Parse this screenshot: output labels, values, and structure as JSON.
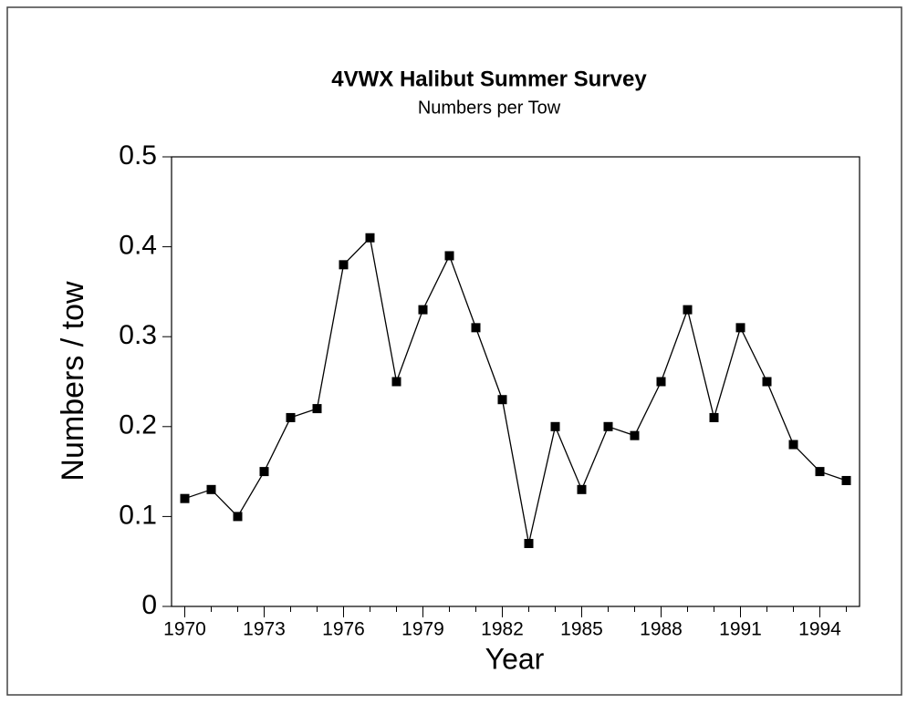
{
  "chart_data": {
    "type": "line",
    "title": "4VWX Halibut Summer Survey",
    "subtitle": "Numbers per Tow",
    "x_label": "Year",
    "y_label": "Numbers / tow",
    "x": [
      1970,
      1971,
      1972,
      1973,
      1974,
      1975,
      1976,
      1977,
      1978,
      1979,
      1980,
      1981,
      1982,
      1983,
      1984,
      1985,
      1986,
      1987,
      1988,
      1989,
      1990,
      1991,
      1992,
      1993,
      1994,
      1995
    ],
    "series": [
      {
        "name": "Numbers per tow",
        "color": "#000000",
        "values": [
          0.12,
          0.13,
          0.1,
          0.15,
          0.21,
          0.22,
          0.38,
          0.41,
          0.25,
          0.33,
          0.39,
          0.31,
          0.23,
          0.07,
          0.2,
          0.13,
          0.2,
          0.19,
          0.25,
          0.33,
          0.21,
          0.31,
          0.25,
          0.18,
          0.15,
          0.14
        ]
      }
    ],
    "xlim": [
      1969.5,
      1995.5
    ],
    "xticks": [
      1970,
      1973,
      1976,
      1979,
      1982,
      1985,
      1988,
      1991,
      1994
    ],
    "ylim": [
      0,
      0.5
    ],
    "yticks": [
      0,
      0.1,
      0.2,
      0.3,
      0.4,
      0.5
    ],
    "grid": false
  }
}
